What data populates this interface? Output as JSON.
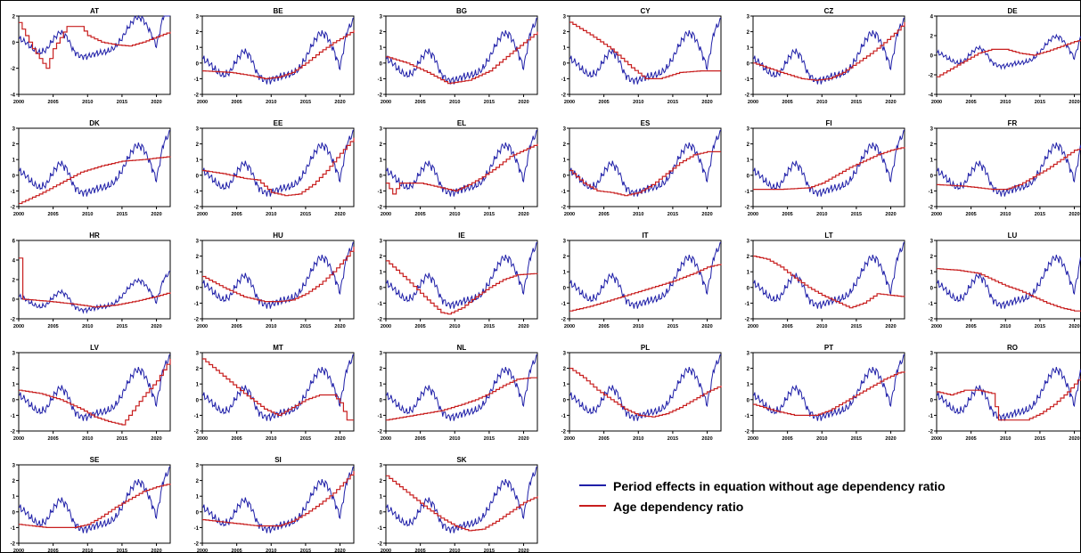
{
  "legend": {
    "items": [
      {
        "label": "Period effects in equation without age dependency ratio",
        "color": "#1f1fa8"
      },
      {
        "label": "Age dependency ratio",
        "color": "#c81e1e"
      }
    ]
  },
  "chart_data": {
    "type": "line",
    "layout": "small-multiples",
    "grid": false,
    "legend_position": "bottom-right",
    "x_ticks": [
      "2000",
      "2005",
      "2010",
      "2015",
      "2020"
    ],
    "xlim": [
      2000,
      2022
    ],
    "panel_order": [
      "AT",
      "BE",
      "BG",
      "CY",
      "CZ",
      "DE",
      "DK",
      "EE",
      "EL",
      "ES",
      "FI",
      "FR",
      "HR",
      "HU",
      "IE",
      "IT",
      "LT",
      "LU",
      "LV",
      "MT",
      "NL",
      "PL",
      "PT",
      "RO",
      "SE",
      "SI",
      "SK"
    ],
    "panel_yticks": {
      "AT": [
        "2",
        "0",
        "-2",
        "-4"
      ],
      "BE": [
        "3",
        "2",
        "1",
        "0",
        "-1",
        "-2"
      ],
      "BG": [
        "3",
        "2",
        "1",
        "0",
        "-1",
        "-2"
      ],
      "CY": [
        "3",
        "2",
        "1",
        "0",
        "-1",
        "-2"
      ],
      "CZ": [
        "3",
        "2",
        "1",
        "0",
        "-1",
        "-2"
      ],
      "DE": [
        "4",
        "2",
        "0",
        "-2",
        "-4"
      ],
      "DK": [
        "3",
        "2",
        "1",
        "0",
        "-1",
        "-2"
      ],
      "EE": [
        "3",
        "2",
        "1",
        "0",
        "-1",
        "-2"
      ],
      "EL": [
        "3",
        "2",
        "1",
        "0",
        "-1",
        "-2"
      ],
      "ES": [
        "3",
        "2",
        "1",
        "0",
        "-1",
        "-2"
      ],
      "FI": [
        "3",
        "2",
        "1",
        "0",
        "-1",
        "-2"
      ],
      "FR": [
        "3",
        "2",
        "1",
        "0",
        "-1",
        "-2"
      ],
      "HR": [
        "6",
        "4",
        "2",
        "0",
        "-2"
      ],
      "HU": [
        "3",
        "2",
        "1",
        "0",
        "-1",
        "-2"
      ],
      "IE": [
        "3",
        "2",
        "1",
        "0",
        "-1",
        "-2"
      ],
      "IT": [
        "3",
        "2",
        "1",
        "0",
        "-1",
        "-2"
      ],
      "LT": [
        "3",
        "2",
        "1",
        "0",
        "-1",
        "-2"
      ],
      "LU": [
        "3",
        "2",
        "1",
        "0",
        "-1",
        "-2"
      ],
      "LV": [
        "3",
        "2",
        "1",
        "0",
        "-1",
        "-2"
      ],
      "MT": [
        "3",
        "2",
        "1",
        "0",
        "-1",
        "-2"
      ],
      "NL": [
        "3",
        "2",
        "1",
        "0",
        "-1",
        "-2"
      ],
      "PL": [
        "3",
        "2",
        "1",
        "0",
        "-1",
        "-2"
      ],
      "PT": [
        "3",
        "2",
        "1",
        "0",
        "-1",
        "-2"
      ],
      "RO": [
        "3",
        "2",
        "1",
        "0",
        "-1",
        "-2"
      ],
      "SE": [
        "3",
        "2",
        "1",
        "0",
        "-1",
        "-2"
      ],
      "SI": [
        "3",
        "2",
        "1",
        "0",
        "-1",
        "-2"
      ],
      "SK": [
        "3",
        "2",
        "1",
        "0",
        "-1",
        "-2"
      ]
    },
    "period_effects": {
      "x": [
        2000,
        2001,
        2002,
        2003,
        2004,
        2005,
        2006,
        2007,
        2008,
        2009,
        2010,
        2011,
        2012,
        2013,
        2014,
        2015,
        2016,
        2017,
        2018,
        2019,
        2020,
        2021,
        2022
      ],
      "y": [
        0.3,
        0.0,
        -0.5,
        -0.8,
        -0.6,
        0.2,
        0.8,
        0.4,
        -0.7,
        -1.1,
        -1.1,
        -0.9,
        -0.8,
        -0.7,
        -0.4,
        0.3,
        1.2,
        1.9,
        1.8,
        0.9,
        -0.3,
        2.0,
        2.8
      ]
    },
    "series": [
      {
        "panel": "AT",
        "name": "Age dependency ratio",
        "x": [
          2000,
          2002,
          2004,
          2005,
          2007,
          2009,
          2010,
          2012,
          2014,
          2016,
          2018,
          2020,
          2022
        ],
        "y": [
          1.5,
          -0.5,
          -2.0,
          -0.5,
          1.2,
          1.2,
          0.5,
          0.0,
          -0.2,
          -0.3,
          0.0,
          0.4,
          0.8
        ]
      },
      {
        "panel": "BE",
        "name": "Age dependency ratio",
        "x": [
          2000,
          2004,
          2007,
          2009,
          2011,
          2013,
          2015,
          2017,
          2019,
          2021,
          2022
        ],
        "y": [
          -0.5,
          -0.6,
          -0.8,
          -1.0,
          -0.9,
          -0.6,
          0.0,
          0.7,
          1.3,
          1.8,
          2.1
        ]
      },
      {
        "panel": "BG",
        "name": "Age dependency ratio",
        "x": [
          2000,
          2003,
          2006,
          2009,
          2012,
          2015,
          2018,
          2020,
          2022
        ],
        "y": [
          0.4,
          0.0,
          -0.6,
          -1.3,
          -1.1,
          -0.5,
          0.6,
          1.3,
          2.0
        ]
      },
      {
        "panel": "CY",
        "name": "Age dependency ratio",
        "x": [
          2000,
          2003,
          2006,
          2009,
          2011,
          2013,
          2016,
          2019,
          2022
        ],
        "y": [
          2.6,
          1.8,
          0.9,
          -0.3,
          -1.0,
          -1.0,
          -0.6,
          -0.5,
          -0.5
        ]
      },
      {
        "panel": "CZ",
        "name": "Age dependency ratio",
        "x": [
          2000,
          2004,
          2007,
          2009,
          2011,
          2013,
          2015,
          2017,
          2019,
          2021,
          2022
        ],
        "y": [
          0.0,
          -0.6,
          -1.0,
          -1.1,
          -1.0,
          -0.6,
          0.0,
          0.6,
          1.3,
          2.1,
          2.6
        ]
      },
      {
        "panel": "DE",
        "name": "Age dependency ratio",
        "x": [
          2000,
          2003,
          2006,
          2008,
          2010,
          2012,
          2014,
          2016,
          2018,
          2020,
          2022
        ],
        "y": [
          -2.2,
          -1.0,
          0.2,
          0.6,
          0.6,
          0.2,
          0.0,
          0.4,
          0.9,
          1.4,
          1.7
        ]
      },
      {
        "panel": "DK",
        "name": "Age dependency ratio",
        "x": [
          2000,
          2003,
          2006,
          2009,
          2012,
          2015,
          2018,
          2020,
          2022
        ],
        "y": [
          -1.8,
          -1.2,
          -0.5,
          0.2,
          0.6,
          0.9,
          1.0,
          1.1,
          1.2
        ]
      },
      {
        "panel": "EE",
        "name": "Age dependency ratio",
        "x": [
          2000,
          2003,
          2006,
          2008,
          2010,
          2012,
          2014,
          2016,
          2018,
          2020,
          2022
        ],
        "y": [
          0.3,
          0.1,
          -0.2,
          -0.3,
          -1.1,
          -1.3,
          -1.2,
          -0.6,
          0.3,
          1.4,
          2.4
        ]
      },
      {
        "panel": "EL",
        "name": "Age dependency ratio",
        "x": [
          2000,
          2001,
          2002,
          2005,
          2008,
          2010,
          2012,
          2014,
          2016,
          2018,
          2020,
          2022
        ],
        "y": [
          -0.5,
          -1.2,
          -0.5,
          -0.5,
          -0.8,
          -1.0,
          -0.6,
          -0.1,
          0.5,
          1.2,
          1.6,
          2.0
        ]
      },
      {
        "panel": "ES",
        "name": "Age dependency ratio",
        "x": [
          2000,
          2002,
          2004,
          2006,
          2008,
          2010,
          2012,
          2014,
          2016,
          2018,
          2020,
          2022
        ],
        "y": [
          0.3,
          -0.5,
          -1.0,
          -1.1,
          -1.3,
          -1.1,
          -0.6,
          0.1,
          0.8,
          1.3,
          1.5,
          1.5
        ]
      },
      {
        "panel": "FI",
        "name": "Age dependency ratio",
        "x": [
          2000,
          2004,
          2008,
          2010,
          2012,
          2014,
          2016,
          2018,
          2020,
          2022
        ],
        "y": [
          -0.9,
          -0.9,
          -0.8,
          -0.5,
          0.0,
          0.5,
          0.9,
          1.3,
          1.6,
          1.8
        ]
      },
      {
        "panel": "FR",
        "name": "Age dependency ratio",
        "x": [
          2000,
          2004,
          2008,
          2010,
          2012,
          2014,
          2016,
          2018,
          2020,
          2022
        ],
        "y": [
          -0.6,
          -0.7,
          -0.9,
          -0.9,
          -0.6,
          -0.1,
          0.4,
          1.0,
          1.6,
          1.8
        ]
      },
      {
        "panel": "HR",
        "name": "Age dependency ratio",
        "x": [
          2000,
          2000.3,
          2000.6,
          2004,
          2008,
          2011,
          2014,
          2017,
          2020,
          2022
        ],
        "y": [
          4.2,
          4.2,
          0.0,
          -0.2,
          -0.5,
          -0.8,
          -0.6,
          -0.2,
          0.3,
          0.7
        ]
      },
      {
        "panel": "HU",
        "name": "Age dependency ratio",
        "x": [
          2000,
          2003,
          2006,
          2009,
          2011,
          2013,
          2015,
          2017,
          2019,
          2021,
          2022
        ],
        "y": [
          0.7,
          0.0,
          -0.6,
          -0.9,
          -0.9,
          -0.8,
          -0.4,
          0.2,
          1.0,
          2.0,
          2.6
        ]
      },
      {
        "panel": "IE",
        "name": "Age dependency ratio",
        "x": [
          2000,
          2003,
          2006,
          2008,
          2009,
          2011,
          2013,
          2015,
          2017,
          2019,
          2022
        ],
        "y": [
          1.7,
          0.5,
          -0.8,
          -1.6,
          -1.7,
          -1.3,
          -0.6,
          0.0,
          0.5,
          0.8,
          0.9
        ]
      },
      {
        "panel": "IT",
        "name": "Age dependency ratio",
        "x": [
          2000,
          2003,
          2006,
          2009,
          2012,
          2015,
          2018,
          2020,
          2022
        ],
        "y": [
          -1.5,
          -1.2,
          -0.8,
          -0.4,
          0.0,
          0.4,
          0.9,
          1.3,
          1.5
        ]
      },
      {
        "panel": "LT",
        "name": "Age dependency ratio",
        "x": [
          2000,
          2002,
          2004,
          2006,
          2008,
          2010,
          2012,
          2014,
          2016,
          2018,
          2020,
          2022
        ],
        "y": [
          2.0,
          1.8,
          1.3,
          0.6,
          0.0,
          -0.5,
          -0.9,
          -1.3,
          -1.0,
          -0.4,
          -0.5,
          -0.6
        ]
      },
      {
        "panel": "LU",
        "name": "Age dependency ratio",
        "x": [
          2000,
          2003,
          2006,
          2008,
          2010,
          2012,
          2014,
          2016,
          2018,
          2020,
          2022
        ],
        "y": [
          1.2,
          1.1,
          0.9,
          0.5,
          0.1,
          -0.2,
          -0.6,
          -1.0,
          -1.3,
          -1.5,
          -1.5
        ]
      },
      {
        "panel": "LV",
        "name": "Age dependency ratio",
        "x": [
          2000,
          2003,
          2006,
          2009,
          2011,
          2013,
          2015,
          2016,
          2018,
          2020,
          2022
        ],
        "y": [
          0.6,
          0.4,
          0.0,
          -0.6,
          -1.1,
          -1.4,
          -1.6,
          -1.0,
          0.2,
          1.2,
          2.6
        ]
      },
      {
        "panel": "MT",
        "name": "Age dependency ratio",
        "x": [
          2000,
          2003,
          2006,
          2009,
          2011,
          2013,
          2015,
          2017,
          2019,
          2020,
          2021,
          2022
        ],
        "y": [
          2.6,
          1.5,
          0.4,
          -0.6,
          -1.0,
          -0.5,
          0.0,
          0.3,
          0.3,
          -0.2,
          -1.3,
          -1.3
        ]
      },
      {
        "panel": "NL",
        "name": "Age dependency ratio",
        "x": [
          2000,
          2004,
          2008,
          2011,
          2013,
          2015,
          2017,
          2019,
          2021,
          2022
        ],
        "y": [
          -1.3,
          -1.0,
          -0.7,
          -0.3,
          0.0,
          0.4,
          0.9,
          1.3,
          1.4,
          1.4
        ]
      },
      {
        "panel": "PL",
        "name": "Age dependency ratio",
        "x": [
          2000,
          2002,
          2004,
          2006,
          2008,
          2010,
          2012,
          2014,
          2016,
          2018,
          2020,
          2022
        ],
        "y": [
          2.0,
          1.4,
          0.6,
          0.0,
          -0.6,
          -1.0,
          -1.1,
          -0.9,
          -0.5,
          0.0,
          0.5,
          0.9
        ]
      },
      {
        "panel": "PT",
        "name": "Age dependency ratio",
        "x": [
          2000,
          2003,
          2006,
          2009,
          2011,
          2013,
          2015,
          2017,
          2019,
          2021,
          2022
        ],
        "y": [
          -0.3,
          -0.7,
          -1.0,
          -1.0,
          -0.7,
          -0.2,
          0.3,
          0.8,
          1.3,
          1.7,
          1.8
        ]
      },
      {
        "panel": "RO",
        "name": "Age dependency ratio",
        "x": [
          2000,
          2002,
          2004,
          2006,
          2008,
          2009,
          2011,
          2013,
          2015,
          2017,
          2019,
          2021,
          2022
        ],
        "y": [
          0.5,
          0.3,
          0.6,
          0.6,
          0.4,
          -1.3,
          -1.3,
          -1.3,
          -0.9,
          -0.3,
          0.5,
          1.5,
          2.0
        ]
      },
      {
        "panel": "SE",
        "name": "Age dependency ratio",
        "x": [
          2000,
          2004,
          2008,
          2010,
          2012,
          2014,
          2016,
          2018,
          2020,
          2022
        ],
        "y": [
          -0.8,
          -1.0,
          -1.0,
          -0.8,
          -0.3,
          0.3,
          0.8,
          1.3,
          1.6,
          1.8
        ]
      },
      {
        "panel": "SI",
        "name": "Age dependency ratio",
        "x": [
          2000,
          2004,
          2008,
          2011,
          2013,
          2015,
          2017,
          2019,
          2021,
          2022
        ],
        "y": [
          -0.5,
          -0.7,
          -0.9,
          -0.9,
          -0.6,
          -0.1,
          0.5,
          1.2,
          2.1,
          2.6
        ]
      },
      {
        "panel": "SK",
        "name": "Age dependency ratio",
        "x": [
          2000,
          2002,
          2004,
          2006,
          2008,
          2010,
          2012,
          2014,
          2016,
          2018,
          2020,
          2022
        ],
        "y": [
          2.3,
          1.6,
          0.9,
          0.2,
          -0.4,
          -0.9,
          -1.2,
          -1.1,
          -0.6,
          0.0,
          0.6,
          1.0
        ]
      }
    ]
  }
}
